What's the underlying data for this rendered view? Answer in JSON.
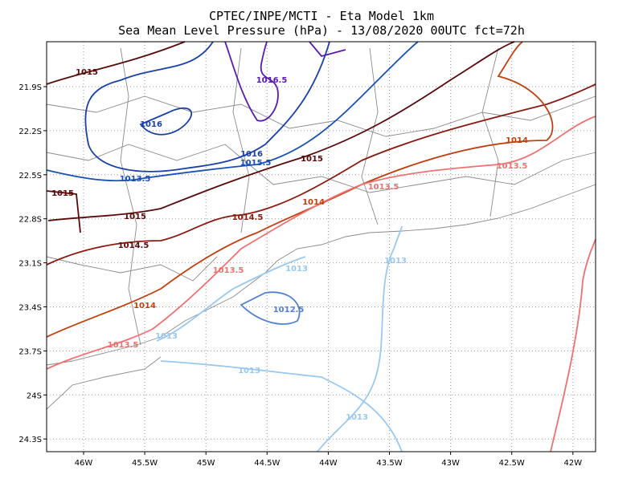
{
  "map": {
    "title": "CPTEC/INPE/MCTI -  Eta Model 1km",
    "subtitle": "Sea Mean Level Pressure (hPa) - 13/08/2020 00UTC fct=72h",
    "lon_labels": [
      "46W",
      "45.5W",
      "45W",
      "44.5W",
      "44W",
      "43.5W",
      "43W",
      "42.5W",
      "42W"
    ],
    "lat_labels": [
      "21.9S",
      "22.2S",
      "22.5S",
      "22.8S",
      "23.1S",
      "23.4S",
      "23.7S",
      "24S",
      "24.3S"
    ],
    "contour_labels": [
      "1015",
      "1016.5",
      "1016",
      "1016",
      "1015.5",
      "1015",
      "1013.5",
      "1015",
      "1015",
      "1014",
      "1014",
      "1013.5",
      "1013.5",
      "1014.5",
      "1014.5",
      "1013.5",
      "1013",
      "1013",
      "1014",
      "1012.5",
      "1013",
      "1013.5",
      "1013",
      "1013"
    ]
  }
}
